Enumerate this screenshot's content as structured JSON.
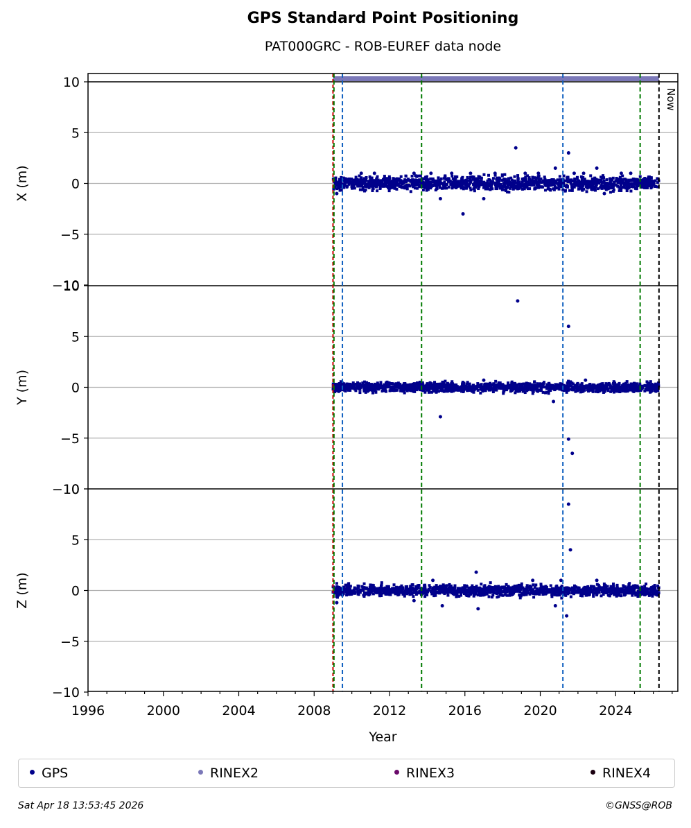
{
  "title": "GPS Standard Point Positioning",
  "subtitle": "PAT000GRC - ROB-EUREF data node",
  "timestamp": "Sat Apr 18 13:53:45 2026",
  "copyright": "©GNSS@ROB",
  "now_label": "Now",
  "legend": [
    {
      "label": "GPS",
      "color": "#00008b"
    },
    {
      "label": "RINEX2",
      "color": "#7b78b8"
    },
    {
      "label": "RINEX3",
      "color": "#6a0a6a"
    },
    {
      "label": "RINEX4",
      "color": "#1a0010"
    }
  ],
  "chart_data": {
    "type": "scatter",
    "xlabel": "Year",
    "xlim": [
      1996,
      2027.3
    ],
    "xticks": [
      "1996",
      "2000",
      "2004",
      "2008",
      "2012",
      "2016",
      "2020",
      "2024"
    ],
    "ylim": [
      -10,
      10
    ],
    "yticks": [
      "−10",
      "−5",
      "0",
      "5",
      "10"
    ],
    "grid": true,
    "legend_position": "bottom",
    "events": {
      "red_lines": [
        2009.0
      ],
      "green_lines": [
        2009.05,
        2013.7,
        2025.3
      ],
      "blue_lines": [
        2009.5,
        2021.2
      ],
      "now_line": 2026.3
    },
    "rinex2_coverage": [
      2009.0,
      2026.3
    ],
    "panels": [
      {
        "ylabel": "X (m)",
        "band": {
          "start": 2009.0,
          "end": 2026.3,
          "min": -1.0,
          "max": 1.0
        },
        "outliers": [
          [
            2009.2,
            -1.0
          ],
          [
            2010.5,
            1.0
          ],
          [
            2011.2,
            1.0
          ],
          [
            2013.3,
            1.0
          ],
          [
            2014.2,
            1.0
          ],
          [
            2014.7,
            -1.5
          ],
          [
            2015.3,
            1.0
          ],
          [
            2015.9,
            -3.0
          ],
          [
            2016.3,
            1.0
          ],
          [
            2017.0,
            -1.5
          ],
          [
            2017.6,
            1.0
          ],
          [
            2018.7,
            3.5
          ],
          [
            2019.2,
            1.0
          ],
          [
            2019.9,
            1.0
          ],
          [
            2020.8,
            1.5
          ],
          [
            2021.5,
            3.0
          ],
          [
            2021.8,
            1.0
          ],
          [
            2022.3,
            1.0
          ],
          [
            2023.0,
            1.5
          ],
          [
            2023.4,
            -1.0
          ],
          [
            2024.3,
            1.0
          ],
          [
            2024.8,
            1.0
          ]
        ]
      },
      {
        "ylabel": "Y (m)",
        "band": {
          "start": 2009.0,
          "end": 2026.3,
          "min": -0.7,
          "max": 0.7
        },
        "outliers": [
          [
            2014.7,
            -2.9
          ],
          [
            2018.8,
            8.5
          ],
          [
            2020.7,
            -1.4
          ],
          [
            2021.5,
            6.0
          ],
          [
            2021.5,
            -5.1
          ],
          [
            2021.7,
            -6.5
          ],
          [
            2017.0,
            0.7
          ],
          [
            2022.4,
            0.7
          ]
        ]
      },
      {
        "ylabel": "Z (m)",
        "band": {
          "start": 2009.0,
          "end": 2026.3,
          "min": -0.8,
          "max": 0.8
        },
        "outliers": [
          [
            2009.2,
            -1.2
          ],
          [
            2013.3,
            -1.0
          ],
          [
            2014.3,
            1.0
          ],
          [
            2014.8,
            -1.5
          ],
          [
            2016.6,
            1.8
          ],
          [
            2016.7,
            -1.8
          ],
          [
            2019.6,
            1.0
          ],
          [
            2020.8,
            -1.5
          ],
          [
            2021.1,
            1.0
          ],
          [
            2021.4,
            -2.5
          ],
          [
            2021.5,
            8.5
          ],
          [
            2021.6,
            4.0
          ],
          [
            2023.0,
            1.0
          ]
        ]
      }
    ]
  }
}
